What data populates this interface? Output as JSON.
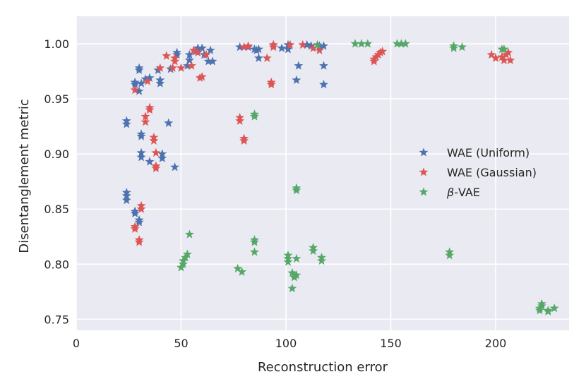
{
  "chart_data": {
    "type": "scatter",
    "title": "",
    "xlabel": "Reconstruction error",
    "ylabel": "Disentanglement metric",
    "xlim": [
      0,
      235
    ],
    "ylim": [
      0.74,
      1.025
    ],
    "xticks": [
      0,
      50,
      100,
      150,
      200
    ],
    "xtick_labels": [
      "0",
      "50",
      "100",
      "150",
      "200"
    ],
    "yticks": [
      0.75,
      0.8,
      0.85,
      0.9,
      0.95,
      1.0
    ],
    "ytick_labels": [
      "0.75",
      "0.80",
      "0.85",
      "0.90",
      "0.95",
      "1.00"
    ],
    "grid": true,
    "legend_position": "center-right",
    "marker": "star",
    "series": [
      {
        "name": "WAE (Uniform)",
        "label_parts": [
          "WAE (Uniform)"
        ],
        "color": "#4c72b0",
        "points": [
          [
            24,
            0.865
          ],
          [
            24,
            0.862
          ],
          [
            24,
            0.858
          ],
          [
            24,
            0.93
          ],
          [
            24,
            0.927
          ],
          [
            28,
            0.848
          ],
          [
            28,
            0.846
          ],
          [
            28,
            0.965
          ],
          [
            28,
            0.963
          ],
          [
            30,
            0.84
          ],
          [
            30,
            0.838
          ],
          [
            30,
            0.978
          ],
          [
            30,
            0.976
          ],
          [
            30,
            0.957
          ],
          [
            31,
            0.901
          ],
          [
            31,
            0.897
          ],
          [
            31,
            0.918
          ],
          [
            31,
            0.916
          ],
          [
            31,
            0.964
          ],
          [
            33,
            0.968
          ],
          [
            35,
            0.893
          ],
          [
            35,
            0.969
          ],
          [
            39,
            0.976
          ],
          [
            40,
            0.967
          ],
          [
            40,
            0.964
          ],
          [
            41,
            0.9
          ],
          [
            41,
            0.896
          ],
          [
            44,
            0.928
          ],
          [
            45,
            0.977
          ],
          [
            47,
            0.888
          ],
          [
            48,
            0.992
          ],
          [
            48,
            0.99
          ],
          [
            53,
            0.98
          ],
          [
            54,
            0.985
          ],
          [
            54,
            0.99
          ],
          [
            57,
            0.993
          ],
          [
            58,
            0.996
          ],
          [
            60,
            0.996
          ],
          [
            61,
            0.99
          ],
          [
            63,
            0.984
          ],
          [
            64,
            0.994
          ],
          [
            65,
            0.984
          ],
          [
            78,
            0.997
          ],
          [
            82,
            0.997
          ],
          [
            85,
            0.995
          ],
          [
            86,
            0.994
          ],
          [
            87,
            0.987
          ],
          [
            87,
            0.995
          ],
          [
            94,
            0.999
          ],
          [
            98,
            0.996
          ],
          [
            101,
            0.995
          ],
          [
            101,
            0.999
          ],
          [
            105,
            0.967
          ],
          [
            106,
            0.98
          ],
          [
            110,
            0.999
          ],
          [
            112,
            0.998
          ],
          [
            116,
            0.998
          ],
          [
            118,
            0.998
          ],
          [
            118,
            0.98
          ],
          [
            118,
            0.963
          ]
        ]
      },
      {
        "name": "WAE (Gaussian)",
        "label_parts": [
          "WAE (Gaussian)"
        ],
        "color": "#dd5555",
        "points": [
          [
            28,
            0.832
          ],
          [
            28,
            0.834
          ],
          [
            28,
            0.958
          ],
          [
            30,
            0.82
          ],
          [
            30,
            0.822
          ],
          [
            31,
            0.853
          ],
          [
            31,
            0.85
          ],
          [
            33,
            0.934
          ],
          [
            33,
            0.929
          ],
          [
            34,
            0.966
          ],
          [
            35,
            0.942
          ],
          [
            35,
            0.94
          ],
          [
            37,
            0.915
          ],
          [
            37,
            0.912
          ],
          [
            38,
            0.889
          ],
          [
            38,
            0.887
          ],
          [
            38,
            0.901
          ],
          [
            40,
            0.978
          ],
          [
            43,
            0.989
          ],
          [
            46,
            0.978
          ],
          [
            47,
            0.984
          ],
          [
            47,
            0.987
          ],
          [
            50,
            0.978
          ],
          [
            55,
            0.98
          ],
          [
            56,
            0.994
          ],
          [
            58,
            0.992
          ],
          [
            59,
            0.969
          ],
          [
            60,
            0.97
          ],
          [
            62,
            0.99
          ],
          [
            78,
            0.933
          ],
          [
            78,
            0.93
          ],
          [
            80,
            0.914
          ],
          [
            80,
            0.912
          ],
          [
            80,
            0.997
          ],
          [
            82,
            0.998
          ],
          [
            91,
            0.987
          ],
          [
            93,
            0.965
          ],
          [
            93,
            0.963
          ],
          [
            94,
            0.999
          ],
          [
            94,
            0.997
          ],
          [
            102,
            0.999
          ],
          [
            108,
            0.999
          ],
          [
            113,
            0.996
          ],
          [
            116,
            0.994
          ],
          [
            142,
            0.986
          ],
          [
            142,
            0.984
          ],
          [
            143,
            0.988
          ],
          [
            144,
            0.99
          ],
          [
            145,
            0.992
          ],
          [
            146,
            0.993
          ],
          [
            198,
            0.99
          ],
          [
            200,
            0.987
          ],
          [
            203,
            0.988
          ],
          [
            204,
            0.985
          ],
          [
            205,
            0.99
          ],
          [
            206,
            0.992
          ],
          [
            207,
            0.985
          ]
        ]
      },
      {
        "name": "β-VAE",
        "label_parts": [
          "β",
          "-VAE"
        ],
        "color": "#55a868",
        "points": [
          [
            50,
            0.797
          ],
          [
            51,
            0.8
          ],
          [
            51,
            0.803
          ],
          [
            52,
            0.806
          ],
          [
            53,
            0.809
          ],
          [
            54,
            0.827
          ],
          [
            77,
            0.796
          ],
          [
            79,
            0.793
          ],
          [
            85,
            0.936
          ],
          [
            85,
            0.934
          ],
          [
            85,
            0.822
          ],
          [
            85,
            0.82
          ],
          [
            85,
            0.811
          ],
          [
            101,
            0.808
          ],
          [
            101,
            0.802
          ],
          [
            101,
            0.805
          ],
          [
            103,
            0.778
          ],
          [
            103,
            0.792
          ],
          [
            104,
            0.79
          ],
          [
            104,
            0.788
          ],
          [
            105,
            0.79
          ],
          [
            105,
            0.805
          ],
          [
            105,
            0.869
          ],
          [
            105,
            0.867
          ],
          [
            113,
            0.815
          ],
          [
            113,
            0.812
          ],
          [
            115,
            0.999
          ],
          [
            117,
            0.806
          ],
          [
            117,
            0.803
          ],
          [
            133,
            1.0
          ],
          [
            136,
            1.0
          ],
          [
            139,
            1.0
          ],
          [
            153,
            1.0
          ],
          [
            155,
            1.0
          ],
          [
            157,
            1.0
          ],
          [
            178,
            0.811
          ],
          [
            178,
            0.808
          ],
          [
            180,
            0.998
          ],
          [
            180,
            0.996
          ],
          [
            184,
            0.997
          ],
          [
            203,
            0.995
          ],
          [
            204,
            0.995
          ],
          [
            221,
            0.76
          ],
          [
            221,
            0.758
          ],
          [
            222,
            0.764
          ],
          [
            222,
            0.762
          ],
          [
            225,
            0.758
          ],
          [
            225,
            0.757
          ],
          [
            228,
            0.76
          ]
        ]
      }
    ]
  }
}
